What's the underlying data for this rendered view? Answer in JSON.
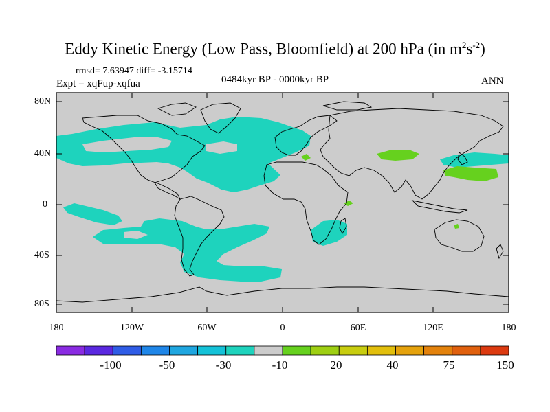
{
  "header": {
    "title_main": "Eddy Kinetic Energy (Low Pass, Bloomfield) at 200 hPa (in m",
    "title_sup1": "2",
    "title_s": "s",
    "title_sup2": "-2",
    "title_close": ")",
    "rmsd_line": "rmsd= 7.63947 diff= -3.15714",
    "experiment": "Expt = xqFup-xqfua",
    "period": "0484kyr BP - 0000kyr BP",
    "season": "ANN"
  },
  "axes": {
    "y_ticks": [
      "80N",
      "40N",
      "0",
      "40S",
      "80S"
    ],
    "x_ticks": [
      "180",
      "120W",
      "60W",
      "0",
      "60E",
      "120E",
      "180"
    ]
  },
  "colorbar": {
    "labels": [
      "-100",
      "-50",
      "-30",
      "-10",
      "20",
      "40",
      "75",
      "150"
    ],
    "colors": [
      "#8a2be2",
      "#5a28e0",
      "#2f5ce6",
      "#1f86e8",
      "#1fa6e0",
      "#14c2d8",
      "#1ed3bd",
      "#cccccc",
      "#66d11e",
      "#9ecf12",
      "#c8cd0f",
      "#e2bf0c",
      "#e5a20c",
      "#e3820c",
      "#e0600e",
      "#dc3a10"
    ]
  },
  "colors": {
    "ocean_land_background": "#cccccc",
    "negative_anomaly": "#1ed3bd",
    "positive_anomaly": "#66d11e"
  }
}
